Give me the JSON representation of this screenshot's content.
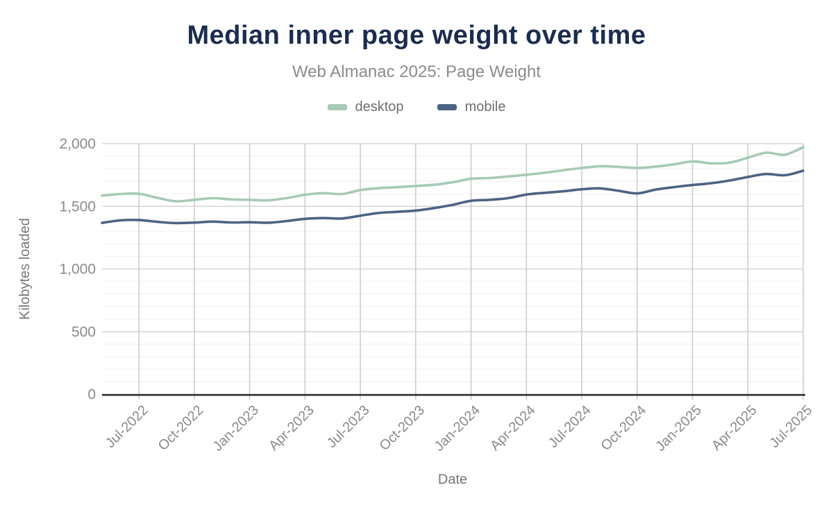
{
  "colors": {
    "title": "#1b2d4e",
    "subtitle": "#8b8b8b",
    "legend_text": "#6f6f6f",
    "axis_text": "#8a8a8a",
    "axis_title_text": "#777777",
    "axis_line": "#262626",
    "grid_major": "#d6d6d6",
    "grid_minor": "#f3f3f3",
    "grid_vertical": "#cccccc",
    "desktop": "#a6cab5",
    "mobile": "#4d6384"
  },
  "legend": {
    "items": [
      {
        "label": "desktop",
        "color": "#a6cab5"
      },
      {
        "label": "mobile",
        "color": "#4d6384"
      }
    ]
  },
  "chart_data": {
    "type": "line",
    "title": "Median inner page weight over time",
    "subtitle": "Web Almanac 2025: Page Weight",
    "xlabel": "Date",
    "ylabel": "Kilobytes loaded",
    "ylim": [
      0,
      2000
    ],
    "y_major_ticks": [
      0,
      500,
      1000,
      1500,
      2000
    ],
    "y_minor_step": 100,
    "grid": true,
    "legend_position": "top",
    "x": [
      "May-2022",
      "Jun-2022",
      "Jul-2022",
      "Aug-2022",
      "Sep-2022",
      "Oct-2022",
      "Nov-2022",
      "Dec-2022",
      "Jan-2023",
      "Feb-2023",
      "Mar-2023",
      "Apr-2023",
      "May-2023",
      "Jun-2023",
      "Jul-2023",
      "Aug-2023",
      "Sep-2023",
      "Oct-2023",
      "Nov-2023",
      "Dec-2023",
      "Jan-2024",
      "Feb-2024",
      "Mar-2024",
      "Apr-2024",
      "May-2024",
      "Jun-2024",
      "Jul-2024",
      "Aug-2024",
      "Sep-2024",
      "Oct-2024",
      "Nov-2024",
      "Dec-2024",
      "Jan-2025",
      "Feb-2025",
      "Mar-2025",
      "Apr-2025",
      "May-2025",
      "Jun-2025",
      "Jul-2025"
    ],
    "x_tick_indices": [
      2,
      5,
      8,
      11,
      14,
      17,
      20,
      23,
      26,
      29,
      32,
      35,
      38
    ],
    "x_tick_labels": [
      "Jul-2022",
      "Oct-2022",
      "Jan-2023",
      "Apr-2023",
      "Jul-2023",
      "Oct-2023",
      "Jan-2024",
      "Apr-2024",
      "Jul-2024",
      "Oct-2024",
      "Jan-2025",
      "Apr-2025",
      "Jul-2025"
    ],
    "series": [
      {
        "name": "desktop",
        "color": "#a6cab5",
        "values": [
          1585,
          1598,
          1600,
          1568,
          1540,
          1552,
          1565,
          1555,
          1552,
          1548,
          1565,
          1592,
          1605,
          1598,
          1630,
          1645,
          1653,
          1662,
          1672,
          1692,
          1720,
          1726,
          1738,
          1752,
          1768,
          1788,
          1806,
          1820,
          1815,
          1806,
          1817,
          1835,
          1858,
          1843,
          1848,
          1888,
          1928,
          1912,
          1972
        ]
      },
      {
        "name": "mobile",
        "color": "#4d6384",
        "values": [
          1368,
          1388,
          1390,
          1376,
          1366,
          1370,
          1378,
          1371,
          1373,
          1369,
          1382,
          1400,
          1406,
          1403,
          1425,
          1447,
          1456,
          1466,
          1486,
          1512,
          1544,
          1552,
          1565,
          1594,
          1608,
          1620,
          1636,
          1643,
          1624,
          1603,
          1633,
          1653,
          1670,
          1684,
          1706,
          1734,
          1758,
          1748,
          1784
        ]
      }
    ]
  }
}
